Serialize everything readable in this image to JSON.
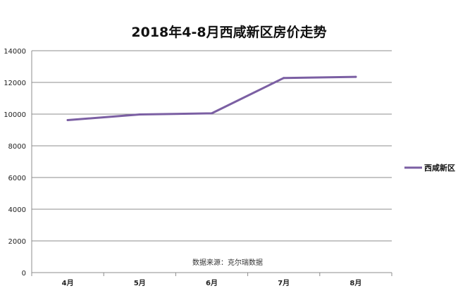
{
  "chart_data": {
    "type": "line",
    "title": "2018年4-8月西咸新区房价走势",
    "categories": [
      "4月",
      "5月",
      "6月",
      "7月",
      "8月"
    ],
    "series": [
      {
        "name": "西咸新区",
        "values": [
          9620,
          9980,
          10050,
          12280,
          12350
        ]
      }
    ],
    "ylim": [
      0,
      14000
    ],
    "yticks": [
      "0",
      "2000",
      "4000",
      "6000",
      "8000",
      "10000",
      "12000",
      "14000"
    ],
    "xlabel": "",
    "ylabel": "",
    "grid": true,
    "legend": "right",
    "annotation": "数据来源：克尔瑞数据",
    "colors": {
      "series": "#7b5fa3",
      "grid": "#8c8c8c",
      "axis": "#8c8c8c"
    }
  }
}
